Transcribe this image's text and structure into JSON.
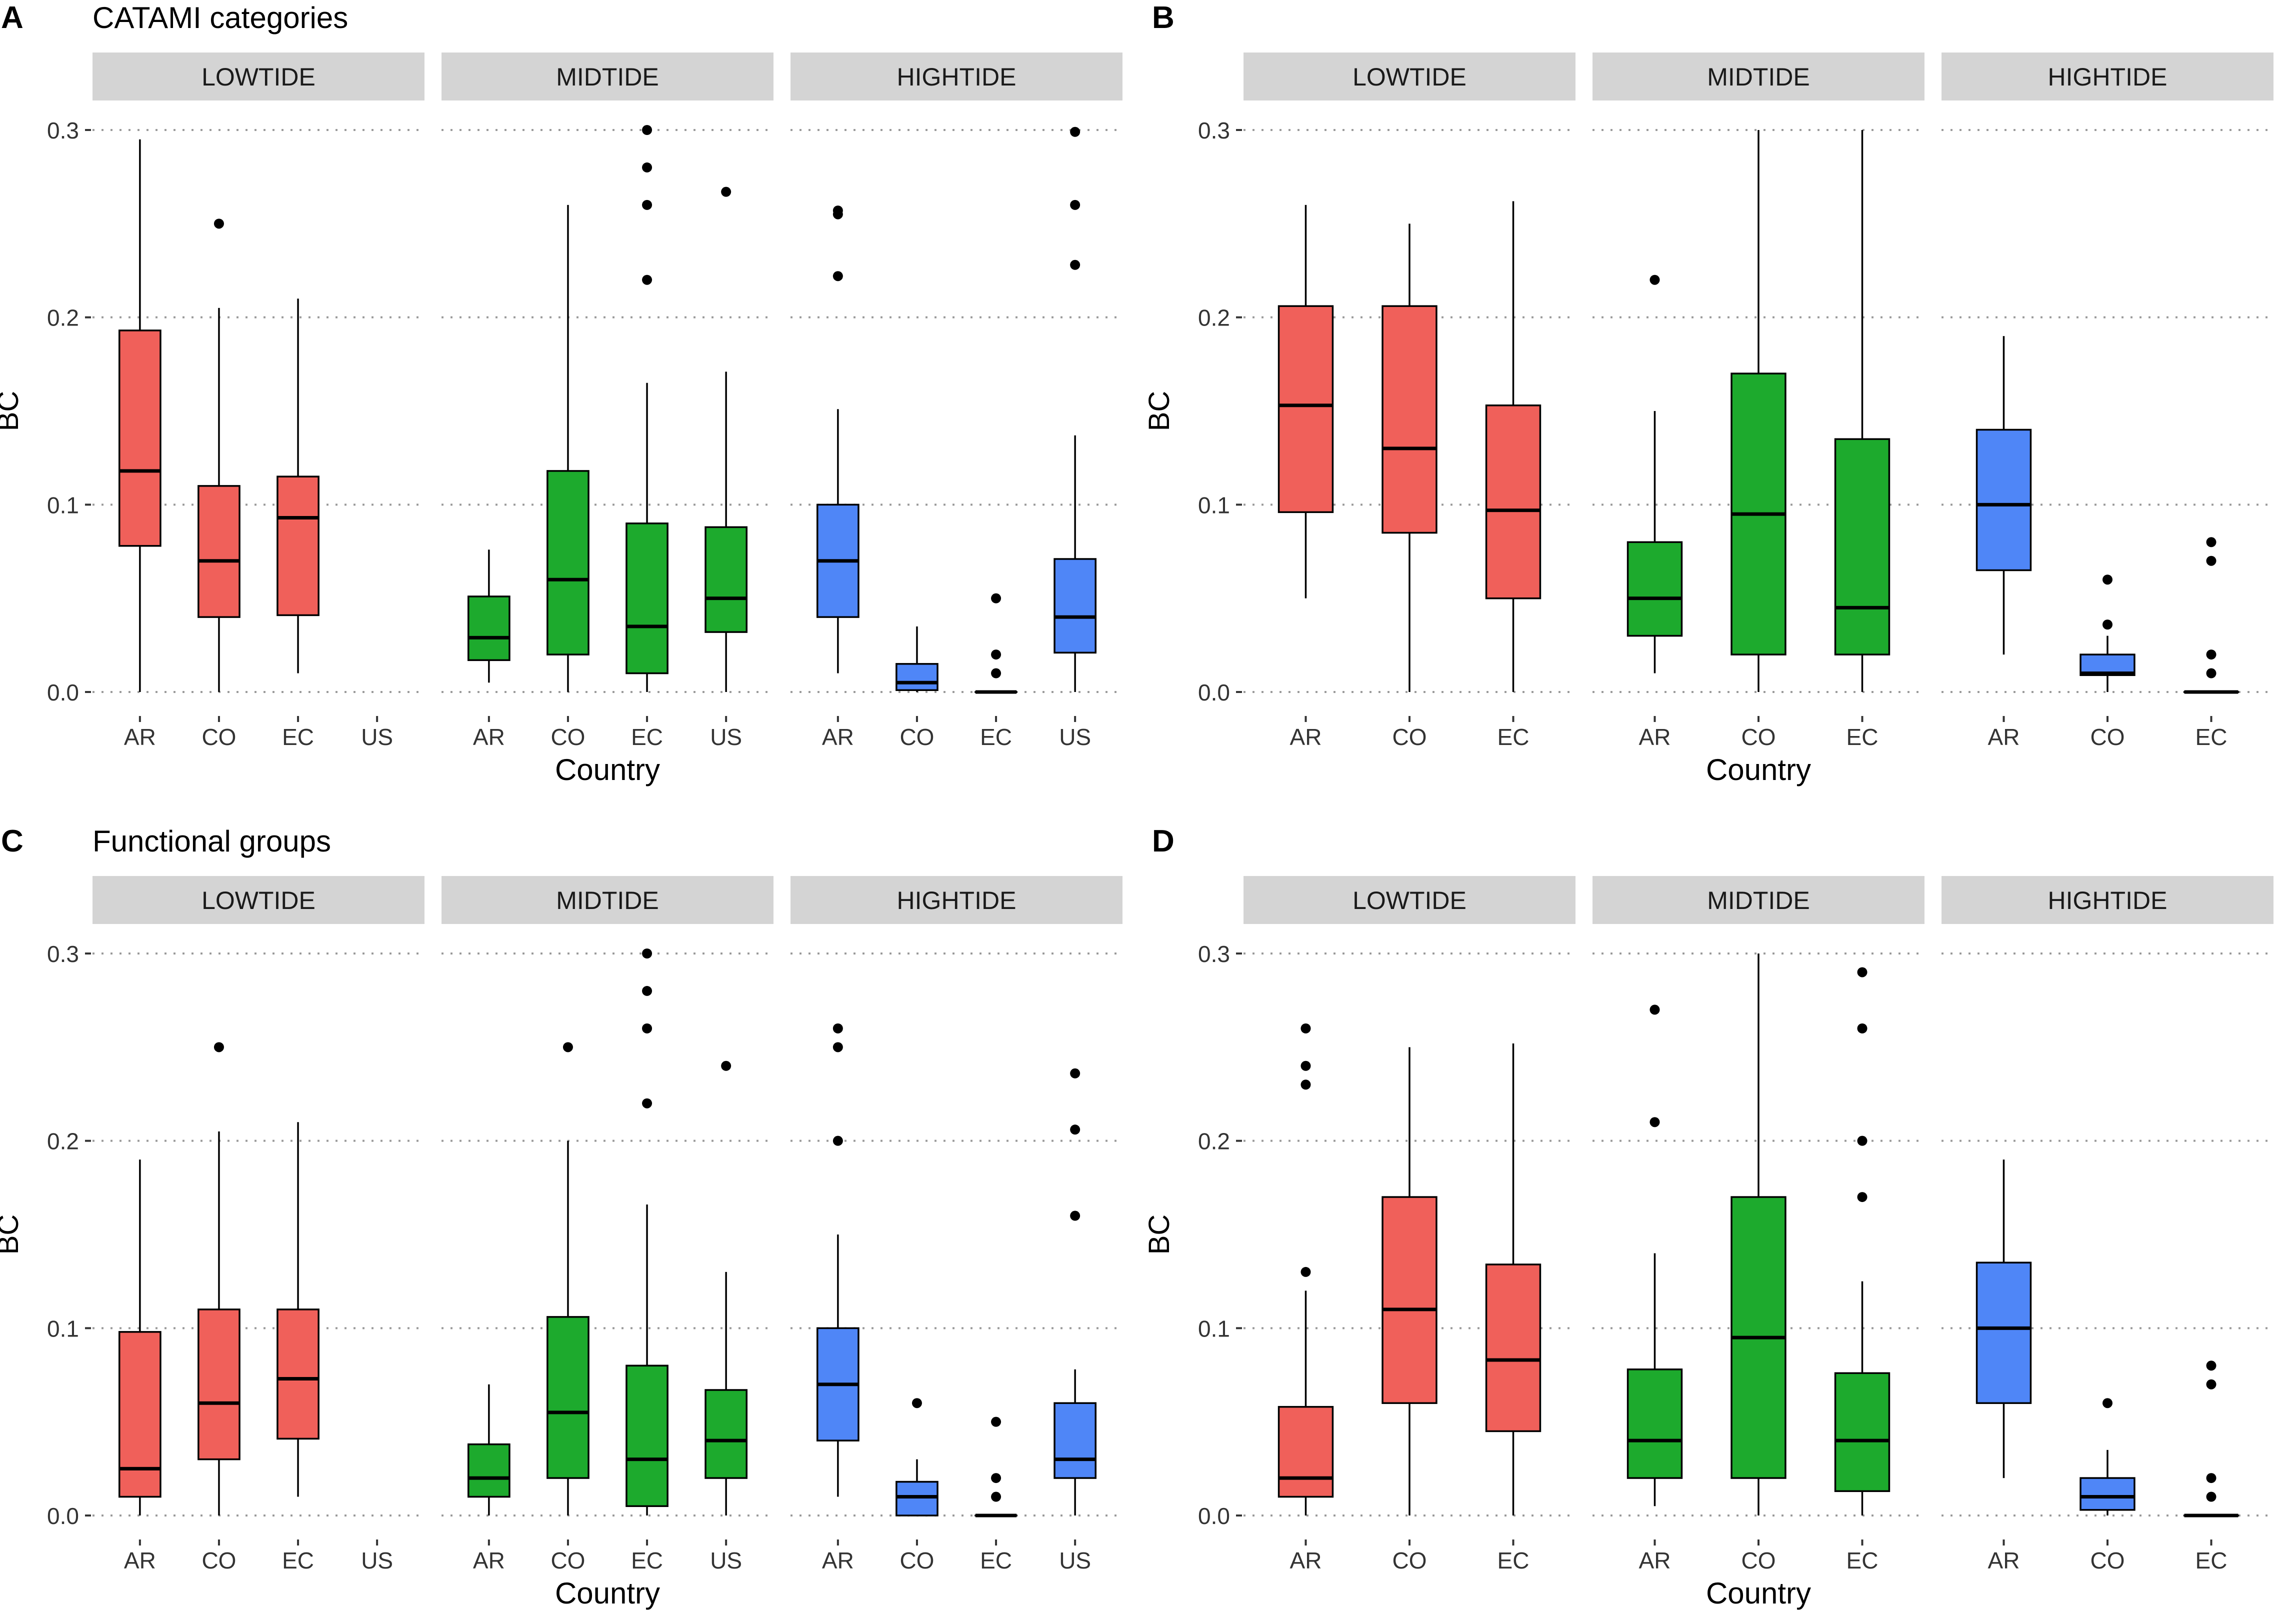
{
  "colors": {
    "LOWTIDE": "#F0605A",
    "MIDTIDE": "#1DAA2D",
    "HIGHTIDE": "#4F86F7",
    "strip_bg": "#D4D4D4",
    "grid": "#9A9A9A",
    "ink": "#000000",
    "tick_text": "#333333"
  },
  "chart_data": [
    {
      "id": "A",
      "type": "boxplot",
      "panel_letter": "A",
      "title": "CATAMI categories",
      "xlabel": "Country",
      "ylabel": "BC",
      "ylim": [
        0,
        0.3
      ],
      "yticks": [
        "0.0",
        "0.1",
        "0.2",
        "0.3"
      ],
      "grid": "dotted horizontal",
      "facets": [
        {
          "name": "LOWTIDE",
          "categories": [
            "AR",
            "CO",
            "EC",
            "US"
          ],
          "boxes": [
            {
              "x": "AR",
              "whisker_low": 0.0,
              "q1": 0.078,
              "median": 0.118,
              "q3": 0.193,
              "whisker_high": 0.295,
              "outliers": []
            },
            {
              "x": "CO",
              "whisker_low": 0.0,
              "q1": 0.04,
              "median": 0.07,
              "q3": 0.11,
              "whisker_high": 0.205,
              "outliers": [
                0.25
              ]
            },
            {
              "x": "EC",
              "whisker_low": 0.01,
              "q1": 0.041,
              "median": 0.093,
              "q3": 0.115,
              "whisker_high": 0.21,
              "outliers": []
            }
          ]
        },
        {
          "name": "MIDTIDE",
          "categories": [
            "AR",
            "CO",
            "EC",
            "US"
          ],
          "boxes": [
            {
              "x": "AR",
              "whisker_low": 0.005,
              "q1": 0.017,
              "median": 0.029,
              "q3": 0.051,
              "whisker_high": 0.076,
              "outliers": []
            },
            {
              "x": "CO",
              "whisker_low": 0.0,
              "q1": 0.02,
              "median": 0.06,
              "q3": 0.118,
              "whisker_high": 0.26,
              "outliers": []
            },
            {
              "x": "EC",
              "whisker_low": 0.0,
              "q1": 0.01,
              "median": 0.035,
              "q3": 0.09,
              "whisker_high": 0.165,
              "outliers": [
                0.22,
                0.26,
                0.28,
                0.3
              ]
            },
            {
              "x": "US",
              "whisker_low": 0.0,
              "q1": 0.032,
              "median": 0.05,
              "q3": 0.088,
              "whisker_high": 0.171,
              "outliers": [
                0.267
              ]
            }
          ]
        },
        {
          "name": "HIGHTIDE",
          "categories": [
            "AR",
            "CO",
            "EC",
            "US"
          ],
          "boxes": [
            {
              "x": "AR",
              "whisker_low": 0.01,
              "q1": 0.04,
              "median": 0.07,
              "q3": 0.1,
              "whisker_high": 0.151,
              "outliers": [
                0.222,
                0.255,
                0.257
              ]
            },
            {
              "x": "CO",
              "whisker_low": 0.0,
              "q1": 0.001,
              "median": 0.005,
              "q3": 0.015,
              "whisker_high": 0.035,
              "outliers": []
            },
            {
              "x": "EC",
              "whisker_low": 0.0,
              "q1": 0.0,
              "median": 0.0,
              "q3": 0.0,
              "whisker_high": 0.0,
              "outliers": [
                0.01,
                0.02,
                0.05
              ]
            },
            {
              "x": "US",
              "whisker_low": 0.0,
              "q1": 0.021,
              "median": 0.04,
              "q3": 0.071,
              "whisker_high": 0.137,
              "outliers": [
                0.228,
                0.26,
                0.299
              ]
            }
          ]
        }
      ]
    },
    {
      "id": "B",
      "type": "boxplot",
      "panel_letter": "B",
      "title": "",
      "xlabel": "Country",
      "ylabel": "BC",
      "ylim": [
        0,
        0.3
      ],
      "yticks": [
        "0.0",
        "0.1",
        "0.2",
        "0.3"
      ],
      "grid": "dotted horizontal",
      "facets": [
        {
          "name": "LOWTIDE",
          "categories": [
            "AR",
            "CO",
            "EC"
          ],
          "boxes": [
            {
              "x": "AR",
              "whisker_low": 0.05,
              "q1": 0.096,
              "median": 0.153,
              "q3": 0.206,
              "whisker_high": 0.26,
              "outliers": []
            },
            {
              "x": "CO",
              "whisker_low": 0.0,
              "q1": 0.085,
              "median": 0.13,
              "q3": 0.206,
              "whisker_high": 0.25,
              "outliers": []
            },
            {
              "x": "EC",
              "whisker_low": 0.0,
              "q1": 0.05,
              "median": 0.097,
              "q3": 0.153,
              "whisker_high": 0.262,
              "outliers": []
            }
          ]
        },
        {
          "name": "MIDTIDE",
          "categories": [
            "AR",
            "CO",
            "EC"
          ],
          "boxes": [
            {
              "x": "AR",
              "whisker_low": 0.01,
              "q1": 0.03,
              "median": 0.05,
              "q3": 0.08,
              "whisker_high": 0.15,
              "outliers": [
                0.22
              ]
            },
            {
              "x": "CO",
              "whisker_low": 0.0,
              "q1": 0.02,
              "median": 0.095,
              "q3": 0.17,
              "whisker_high": 0.3,
              "outliers": []
            },
            {
              "x": "EC",
              "whisker_low": 0.0,
              "q1": 0.02,
              "median": 0.045,
              "q3": 0.135,
              "whisker_high": 0.3,
              "outliers": []
            }
          ]
        },
        {
          "name": "HIGHTIDE",
          "categories": [
            "AR",
            "CO",
            "EC"
          ],
          "boxes": [
            {
              "x": "AR",
              "whisker_low": 0.02,
              "q1": 0.065,
              "median": 0.1,
              "q3": 0.14,
              "whisker_high": 0.19,
              "outliers": []
            },
            {
              "x": "CO",
              "whisker_low": 0.0,
              "q1": 0.009,
              "median": 0.01,
              "q3": 0.02,
              "whisker_high": 0.03,
              "outliers": [
                0.036,
                0.06
              ]
            },
            {
              "x": "EC",
              "whisker_low": 0.0,
              "q1": 0.0,
              "median": 0.0,
              "q3": 0.0,
              "whisker_high": 0.0,
              "outliers": [
                0.01,
                0.02,
                0.07,
                0.08
              ]
            }
          ]
        }
      ]
    },
    {
      "id": "C",
      "type": "boxplot",
      "panel_letter": "C",
      "title": "Functional groups",
      "xlabel": "Country",
      "ylabel": "BC",
      "ylim": [
        0,
        0.3
      ],
      "yticks": [
        "0.0",
        "0.1",
        "0.2",
        "0.3"
      ],
      "grid": "dotted horizontal",
      "facets": [
        {
          "name": "LOWTIDE",
          "categories": [
            "AR",
            "CO",
            "EC",
            "US"
          ],
          "boxes": [
            {
              "x": "AR",
              "whisker_low": 0.0,
              "q1": 0.01,
              "median": 0.025,
              "q3": 0.098,
              "whisker_high": 0.19,
              "outliers": []
            },
            {
              "x": "CO",
              "whisker_low": 0.0,
              "q1": 0.03,
              "median": 0.06,
              "q3": 0.11,
              "whisker_high": 0.205,
              "outliers": [
                0.25
              ]
            },
            {
              "x": "EC",
              "whisker_low": 0.01,
              "q1": 0.041,
              "median": 0.073,
              "q3": 0.11,
              "whisker_high": 0.21,
              "outliers": []
            }
          ]
        },
        {
          "name": "MIDTIDE",
          "categories": [
            "AR",
            "CO",
            "EC",
            "US"
          ],
          "boxes": [
            {
              "x": "AR",
              "whisker_low": 0.0,
              "q1": 0.01,
              "median": 0.02,
              "q3": 0.038,
              "whisker_high": 0.07,
              "outliers": []
            },
            {
              "x": "CO",
              "whisker_low": 0.0,
              "q1": 0.02,
              "median": 0.055,
              "q3": 0.106,
              "whisker_high": 0.2,
              "outliers": [
                0.25
              ]
            },
            {
              "x": "EC",
              "whisker_low": 0.0,
              "q1": 0.005,
              "median": 0.03,
              "q3": 0.08,
              "whisker_high": 0.166,
              "outliers": [
                0.22,
                0.26,
                0.28,
                0.3
              ]
            },
            {
              "x": "US",
              "whisker_low": 0.0,
              "q1": 0.02,
              "median": 0.04,
              "q3": 0.067,
              "whisker_high": 0.13,
              "outliers": [
                0.24
              ]
            }
          ]
        },
        {
          "name": "HIGHTIDE",
          "categories": [
            "AR",
            "CO",
            "EC",
            "US"
          ],
          "boxes": [
            {
              "x": "AR",
              "whisker_low": 0.01,
              "q1": 0.04,
              "median": 0.07,
              "q3": 0.1,
              "whisker_high": 0.15,
              "outliers": [
                0.2,
                0.25,
                0.26
              ]
            },
            {
              "x": "CO",
              "whisker_low": 0.0,
              "q1": 0.0,
              "median": 0.01,
              "q3": 0.018,
              "whisker_high": 0.03,
              "outliers": [
                0.06
              ]
            },
            {
              "x": "EC",
              "whisker_low": 0.0,
              "q1": 0.0,
              "median": 0.0,
              "q3": 0.0,
              "whisker_high": 0.0,
              "outliers": [
                0.01,
                0.02,
                0.05
              ]
            },
            {
              "x": "US",
              "whisker_low": 0.0,
              "q1": 0.02,
              "median": 0.03,
              "q3": 0.06,
              "whisker_high": 0.078,
              "outliers": [
                0.16,
                0.206,
                0.236
              ]
            }
          ]
        }
      ]
    },
    {
      "id": "D",
      "type": "boxplot",
      "panel_letter": "D",
      "title": "",
      "xlabel": "Country",
      "ylabel": "BC",
      "ylim": [
        0,
        0.3
      ],
      "yticks": [
        "0.0",
        "0.1",
        "0.2",
        "0.3"
      ],
      "grid": "dotted horizontal",
      "facets": [
        {
          "name": "LOWTIDE",
          "categories": [
            "AR",
            "CO",
            "EC"
          ],
          "boxes": [
            {
              "x": "AR",
              "whisker_low": 0.0,
              "q1": 0.01,
              "median": 0.02,
              "q3": 0.058,
              "whisker_high": 0.12,
              "outliers": [
                0.13,
                0.23,
                0.24,
                0.26
              ]
            },
            {
              "x": "CO",
              "whisker_low": 0.0,
              "q1": 0.06,
              "median": 0.11,
              "q3": 0.17,
              "whisker_high": 0.25,
              "outliers": []
            },
            {
              "x": "EC",
              "whisker_low": 0.0,
              "q1": 0.045,
              "median": 0.083,
              "q3": 0.134,
              "whisker_high": 0.252,
              "outliers": []
            }
          ]
        },
        {
          "name": "MIDTIDE",
          "categories": [
            "AR",
            "CO",
            "EC"
          ],
          "boxes": [
            {
              "x": "AR",
              "whisker_low": 0.005,
              "q1": 0.02,
              "median": 0.04,
              "q3": 0.078,
              "whisker_high": 0.14,
              "outliers": [
                0.21,
                0.27
              ]
            },
            {
              "x": "CO",
              "whisker_low": 0.0,
              "q1": 0.02,
              "median": 0.095,
              "q3": 0.17,
              "whisker_high": 0.3,
              "outliers": []
            },
            {
              "x": "EC",
              "whisker_low": 0.0,
              "q1": 0.013,
              "median": 0.04,
              "q3": 0.076,
              "whisker_high": 0.125,
              "outliers": [
                0.17,
                0.2,
                0.26,
                0.29
              ]
            }
          ]
        },
        {
          "name": "HIGHTIDE",
          "categories": [
            "AR",
            "CO",
            "EC"
          ],
          "boxes": [
            {
              "x": "AR",
              "whisker_low": 0.02,
              "q1": 0.06,
              "median": 0.1,
              "q3": 0.135,
              "whisker_high": 0.19,
              "outliers": []
            },
            {
              "x": "CO",
              "whisker_low": 0.0,
              "q1": 0.003,
              "median": 0.01,
              "q3": 0.02,
              "whisker_high": 0.035,
              "outliers": [
                0.06
              ]
            },
            {
              "x": "EC",
              "whisker_low": 0.0,
              "q1": 0.0,
              "median": 0.0,
              "q3": 0.0,
              "whisker_high": 0.0,
              "outliers": [
                0.01,
                0.02,
                0.07,
                0.08
              ]
            }
          ]
        }
      ]
    }
  ]
}
